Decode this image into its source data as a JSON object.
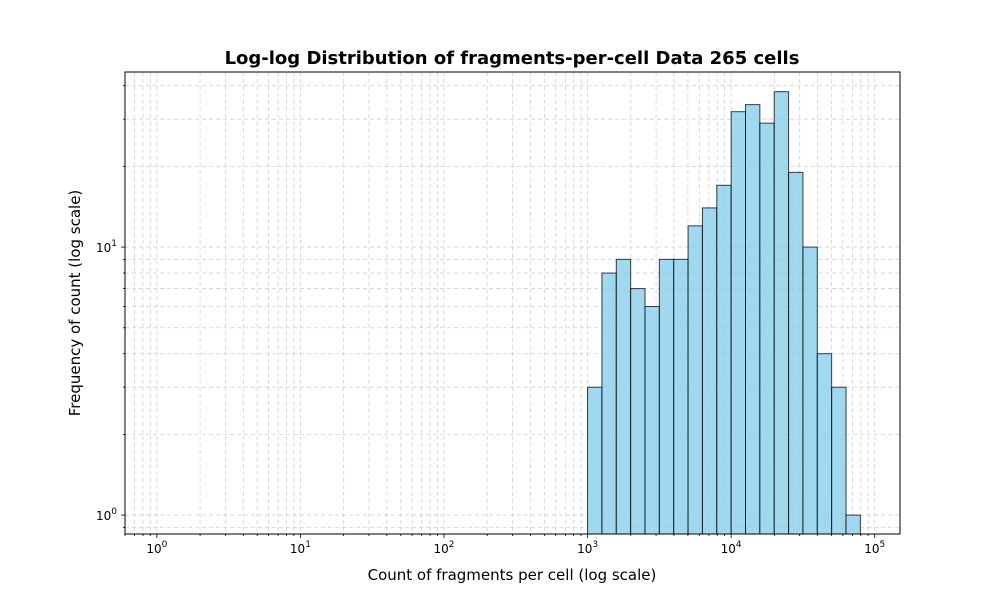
{
  "chart_data": {
    "type": "bar",
    "title": "Log-log Distribution of fragments-per-cell Data 265 cells",
    "xlabel": "Count of fragments per cell (log scale)",
    "ylabel": "Frequency of count (log scale)",
    "x_scale": "log",
    "y_scale": "log",
    "xlim": [
      0.6,
      150000
    ],
    "ylim": [
      0.85,
      45
    ],
    "grid": true,
    "grid_style": "dashed",
    "bar_color": "#87CEEB",
    "edge_color": "#000000",
    "x_ticks": [
      {
        "base": "10",
        "exp": "0",
        "value": 1
      },
      {
        "base": "10",
        "exp": "1",
        "value": 10
      },
      {
        "base": "10",
        "exp": "2",
        "value": 100
      },
      {
        "base": "10",
        "exp": "3",
        "value": 1000
      },
      {
        "base": "10",
        "exp": "4",
        "value": 10000
      },
      {
        "base": "10",
        "exp": "5",
        "value": 100000
      }
    ],
    "y_ticks": [
      {
        "base": "10",
        "exp": "0",
        "value": 1
      },
      {
        "base": "10",
        "exp": "1",
        "value": 10
      }
    ],
    "bin_edges": [
      1000,
      1259,
      1585,
      1995,
      2512,
      3162,
      3981,
      5012,
      6310,
      7943,
      10000,
      12589,
      15849,
      19953,
      25119,
      31623,
      39811,
      50119,
      63096,
      79433
    ],
    "values": [
      3,
      8,
      9,
      7,
      6,
      9,
      9,
      12,
      14,
      17,
      32,
      34,
      29,
      38,
      19,
      10,
      4,
      3,
      1
    ]
  }
}
